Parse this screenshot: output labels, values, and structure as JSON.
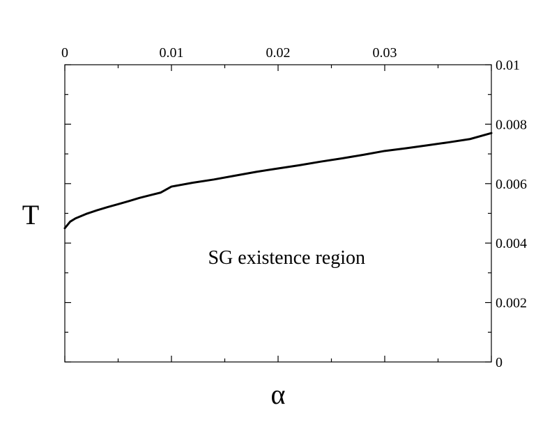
{
  "chart_data": {
    "type": "line",
    "title": "",
    "xlabel": "α",
    "ylabel": "T",
    "xlim": [
      0,
      0.04
    ],
    "ylim": [
      0,
      0.01
    ],
    "x_ticks": [
      0,
      0.01,
      0.02,
      0.03
    ],
    "x_tick_labels": [
      "0",
      "0.01",
      "0.02",
      "0.03"
    ],
    "y_ticks": [
      0,
      0.002,
      0.004,
      0.006,
      0.008,
      0.01
    ],
    "y_tick_labels": [
      "0",
      "0.002",
      "0.004",
      "0.006",
      "0.008",
      "0.01"
    ],
    "x_axis_position": "top",
    "y_axis_position": "right",
    "grid": false,
    "legend": "none",
    "annotations": [
      {
        "text": "SG existence region",
        "x": 0.0208,
        "y": 0.0033
      }
    ],
    "series": [
      {
        "color": "#000000",
        "x": [
          0,
          0.0005,
          0.001,
          0.002,
          0.003,
          0.004,
          0.005,
          0.006,
          0.007,
          0.008,
          0.009,
          0.01,
          0.012,
          0.014,
          0.016,
          0.018,
          0.02,
          0.022,
          0.024,
          0.026,
          0.028,
          0.03,
          0.032,
          0.034,
          0.036,
          0.038,
          0.04
        ],
        "y": [
          0.0045,
          0.00472,
          0.00483,
          0.00498,
          0.0051,
          0.00521,
          0.00531,
          0.00541,
          0.00552,
          0.00561,
          0.0057,
          0.0059,
          0.00603,
          0.00614,
          0.00627,
          0.0064,
          0.00651,
          0.00662,
          0.00674,
          0.00685,
          0.00697,
          0.0071,
          0.00719,
          0.00729,
          0.00739,
          0.0075,
          0.0077
        ]
      }
    ]
  }
}
